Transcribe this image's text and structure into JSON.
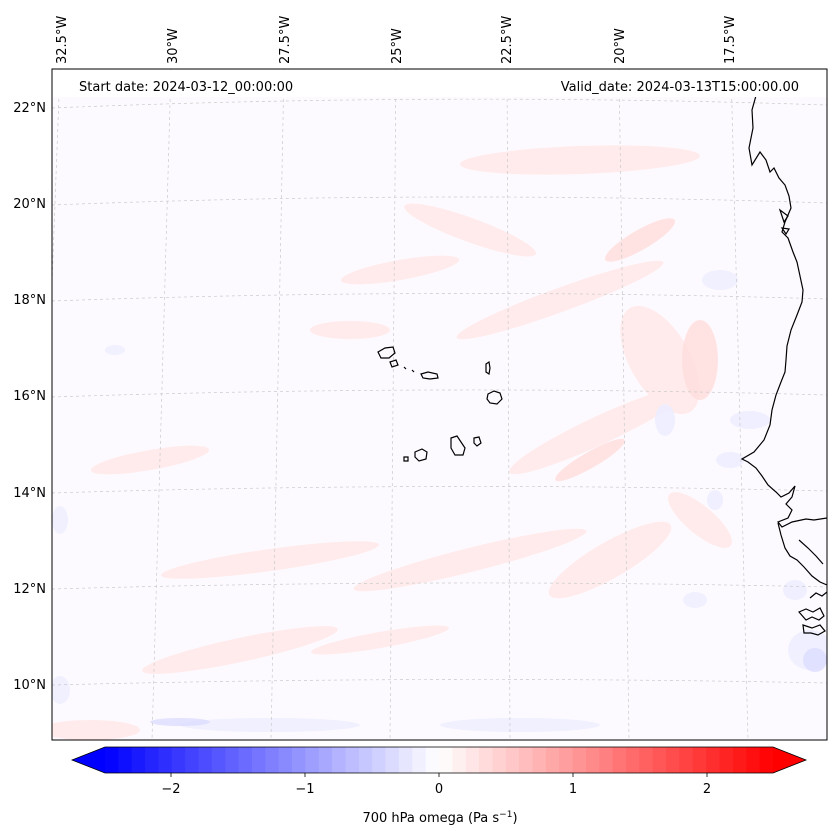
{
  "header": {
    "start_date": "Start date: 2024-03-12_00:00:00",
    "valid_date": "Valid_date: 2024-03-13T15:00:00.00"
  },
  "lon_labels": [
    "32.5°W",
    "30°W",
    "27.5°W",
    "25°W",
    "22.5°W",
    "20°W",
    "17.5°W"
  ],
  "lat_labels": [
    "22°N",
    "20°N",
    "18°N",
    "16°N",
    "14°N",
    "12°N",
    "10°N"
  ],
  "colorbar": {
    "ticks": [
      "−2",
      "−1",
      "0",
      "1",
      "2"
    ],
    "label": "700 hPa omega (Pa s",
    "label_sup": "−1",
    "label_close": ")",
    "neg_color": "#0000ff",
    "mid_color": "#ffffff",
    "pos_color": "#ff0000"
  }
}
